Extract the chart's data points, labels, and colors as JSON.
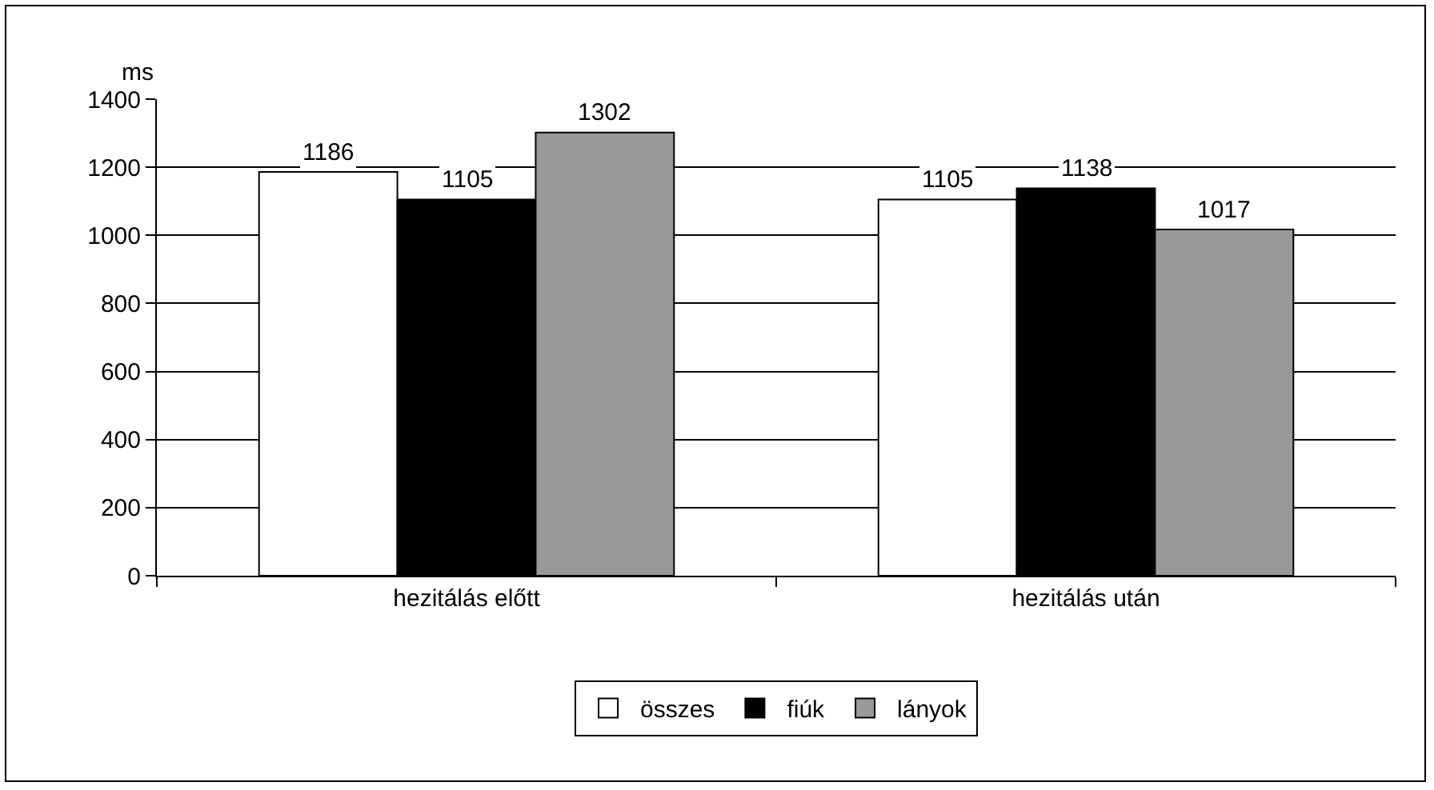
{
  "chart_data": {
    "type": "bar",
    "ylabel": "ms",
    "categories": [
      "hezitálás előtt",
      "hezitálás után"
    ],
    "series": [
      {
        "name": "összes",
        "color": "#ffffff",
        "values": [
          1186,
          1105
        ]
      },
      {
        "name": "fiúk",
        "color": "#000000",
        "values": [
          1105,
          1138
        ]
      },
      {
        "name": "lányok",
        "color": "#999999",
        "values": [
          1302,
          1017
        ]
      }
    ],
    "ylim": [
      0,
      1400
    ],
    "yticks": [
      0,
      200,
      400,
      600,
      800,
      1000,
      1200,
      1400
    ],
    "grid": "y",
    "legend": "bottom",
    "data_labels": true
  }
}
